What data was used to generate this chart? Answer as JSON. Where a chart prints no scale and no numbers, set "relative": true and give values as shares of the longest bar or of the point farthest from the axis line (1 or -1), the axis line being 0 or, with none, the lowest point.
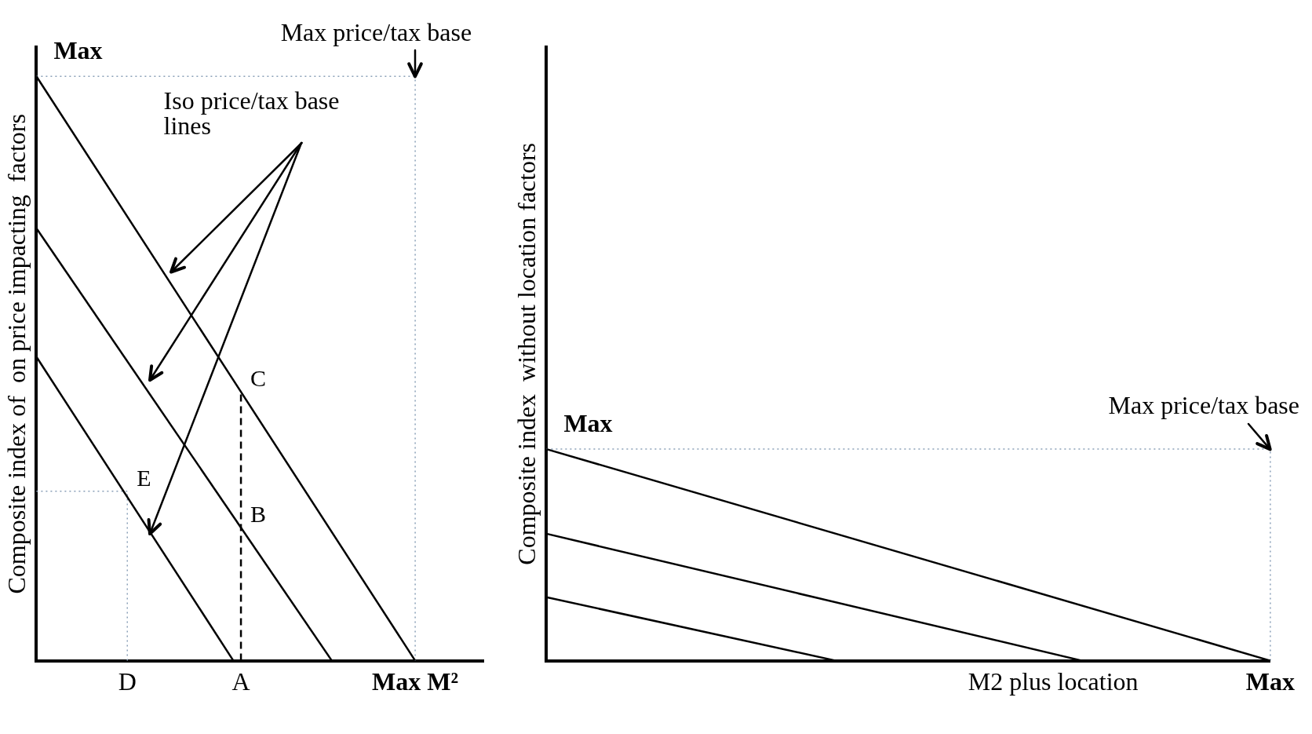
{
  "chart_data": [
    {
      "type": "line",
      "relative": true,
      "ylabel": "Composite index of  on price impacting  factors",
      "grid": false,
      "legend": false,
      "marker": "none",
      "categories": [
        null,
        null,
        null,
        null,
        null,
        null,
        null,
        null,
        null,
        null,
        null,
        null,
        "D",
        null,
        null,
        null,
        null,
        null,
        null,
        null,
        null,
        null,
        null,
        null,
        null,
        null,
        null,
        "A",
        null,
        null,
        null,
        null,
        null,
        null,
        null,
        null,
        null,
        null,
        null,
        null,
        null,
        null,
        null,
        null,
        null,
        null,
        null,
        null,
        null,
        null,
        "Max M²",
        null,
        null,
        null,
        null,
        null,
        null,
        null,
        null,
        null
      ],
      "series": [
        {
          "color": "#000000",
          "values": [
            1,
            null,
            null,
            null,
            null,
            null,
            null,
            null,
            null,
            null,
            null,
            null,
            null,
            null,
            null,
            null,
            null,
            null,
            null,
            null,
            null,
            null,
            null,
            null,
            null,
            null,
            null,
            0.46,
            null,
            null,
            null,
            null,
            null,
            null,
            null,
            null,
            null,
            null,
            null,
            null,
            null,
            null,
            null,
            null,
            null,
            null,
            null,
            null,
            null,
            null,
            0,
            null,
            null,
            null,
            null,
            null,
            null,
            null,
            null,
            null
          ]
        },
        {
          "color": "#000000",
          "values": [
            0.74,
            null,
            null,
            null,
            null,
            null,
            null,
            null,
            null,
            null,
            null,
            null,
            null,
            null,
            null,
            null,
            null,
            null,
            null,
            null,
            null,
            null,
            null,
            null,
            null,
            null,
            null,
            null,
            null,
            null,
            null,
            null,
            null,
            null,
            null,
            null,
            null,
            null,
            null,
            0,
            null,
            null,
            null,
            null,
            null,
            null,
            null,
            null,
            null,
            null,
            null,
            null,
            null,
            null,
            null,
            null,
            null,
            null,
            null,
            null
          ]
        },
        {
          "color": "#000000",
          "values": [
            0.52,
            null,
            null,
            null,
            null,
            null,
            null,
            null,
            null,
            null,
            null,
            null,
            null,
            null,
            null,
            null,
            null,
            null,
            null,
            null,
            null,
            null,
            null,
            null,
            null,
            null,
            0,
            null,
            null,
            null,
            null,
            null,
            null,
            null,
            null,
            null,
            null,
            null,
            null,
            null,
            null,
            null,
            null,
            null,
            null,
            null,
            null,
            null,
            null,
            null,
            null,
            null,
            null,
            null,
            null,
            null,
            null,
            null,
            null,
            null
          ]
        },
        {
          "color": "#8aa0b8",
          "line_style": "dotted",
          "values": [
            0.29,
            null,
            null,
            null,
            null,
            null,
            null,
            null,
            null,
            null,
            null,
            null,
            0.29,
            null,
            null,
            null,
            null,
            null,
            null,
            null,
            null,
            null,
            null,
            null,
            null,
            null,
            null,
            null,
            null,
            null,
            null,
            null,
            null,
            null,
            null,
            null,
            null,
            null,
            null,
            null,
            null,
            null,
            null,
            null,
            null,
            null,
            null,
            null,
            null,
            null,
            null,
            null,
            null,
            null,
            null,
            null,
            null,
            null,
            null,
            null
          ]
        },
        {
          "color": "#8aa0b8",
          "line_style": "dotted",
          "values": [
            1,
            null,
            null,
            null,
            null,
            null,
            null,
            null,
            null,
            null,
            null,
            null,
            null,
            null,
            null,
            null,
            null,
            null,
            null,
            null,
            null,
            null,
            null,
            null,
            null,
            null,
            null,
            null,
            null,
            null,
            null,
            null,
            null,
            null,
            null,
            null,
            null,
            null,
            null,
            null,
            null,
            null,
            null,
            null,
            null,
            null,
            null,
            null,
            null,
            null,
            1,
            null,
            null,
            null,
            null,
            null,
            null,
            null,
            null,
            null
          ]
        }
      ],
      "ref_lines": [
        {
          "axis": "x",
          "value": "D",
          "color": "#8aa0b8",
          "line_style": "dotted"
        },
        {
          "axis": "x",
          "value": "A",
          "color": "#000000",
          "line_style": "dashed"
        },
        {
          "axis": "x",
          "value": "Max M²",
          "color": "#8aa0b8",
          "line_style": "dotted"
        }
      ],
      "annotations": [
        "Iso  price/tax base lines",
        {
          "text": "Max",
          "y": 1
        },
        {
          "text": "Max price/tax base",
          "x": "Max M²",
          "y": 1
        },
        {
          "text": "C",
          "x": "A",
          "y": 0.46
        },
        {
          "text": "B",
          "x": "A",
          "y": 0.228
        },
        {
          "text": "E",
          "x": "D",
          "y": 0.29
        }
      ]
    },
    {
      "type": "line",
      "relative": true,
      "ylabel": "Composite index  without location factors",
      "grid": false,
      "legend": false,
      "marker": "none",
      "categories": [
        null,
        null,
        null,
        null,
        null,
        null,
        null,
        null,
        null,
        null,
        null,
        null,
        null,
        null,
        null,
        null,
        null,
        null,
        null,
        null,
        null,
        null,
        null,
        null,
        null,
        null,
        null,
        null,
        null,
        null,
        null,
        null,
        null,
        null,
        null,
        "M2 plus location",
        null,
        null,
        null,
        null,
        null,
        null,
        null,
        null,
        null,
        null,
        null,
        null,
        null,
        null,
        "Max"
      ],
      "series": [
        {
          "color": "#000000",
          "values": [
            1,
            null,
            null,
            null,
            null,
            null,
            null,
            null,
            null,
            null,
            null,
            null,
            null,
            null,
            null,
            null,
            null,
            null,
            null,
            null,
            null,
            null,
            null,
            null,
            null,
            null,
            null,
            null,
            null,
            null,
            null,
            null,
            null,
            null,
            null,
            null,
            null,
            null,
            null,
            null,
            null,
            null,
            null,
            null,
            null,
            null,
            null,
            null,
            null,
            null,
            0
          ]
        },
        {
          "color": "#000000",
          "values": [
            0.6,
            null,
            null,
            null,
            null,
            null,
            null,
            null,
            null,
            null,
            null,
            null,
            null,
            null,
            null,
            null,
            null,
            null,
            null,
            null,
            null,
            null,
            null,
            null,
            null,
            null,
            null,
            null,
            null,
            null,
            null,
            null,
            null,
            null,
            null,
            null,
            null,
            0,
            null,
            null,
            null,
            null,
            null,
            null,
            null,
            null,
            null,
            null,
            null,
            null,
            null
          ]
        },
        {
          "color": "#000000",
          "values": [
            0.3,
            null,
            null,
            null,
            null,
            null,
            null,
            null,
            null,
            null,
            null,
            null,
            null,
            null,
            null,
            null,
            null,
            null,
            null,
            null,
            0,
            null,
            null,
            null,
            null,
            null,
            null,
            null,
            null,
            null,
            null,
            null,
            null,
            null,
            null,
            null,
            null,
            null,
            null,
            null,
            null,
            null,
            null,
            null,
            null,
            null,
            null,
            null,
            null,
            null,
            null
          ]
        },
        {
          "color": "#8aa0b8",
          "line_style": "dotted",
          "values": [
            1,
            null,
            null,
            null,
            null,
            null,
            null,
            null,
            null,
            null,
            null,
            null,
            null,
            null,
            null,
            null,
            null,
            null,
            null,
            null,
            null,
            null,
            null,
            null,
            null,
            null,
            null,
            null,
            null,
            null,
            null,
            null,
            null,
            null,
            null,
            null,
            null,
            null,
            null,
            null,
            null,
            null,
            null,
            null,
            null,
            null,
            null,
            null,
            null,
            null,
            1
          ]
        }
      ],
      "ref_lines": [
        {
          "axis": "x",
          "value": "Max",
          "color": "#8aa0b8",
          "line_style": "dotted"
        }
      ],
      "annotations": [
        {
          "text": "Max",
          "y": 1
        },
        {
          "text": "Max price/tax base",
          "x": "Max",
          "y": 1
        }
      ]
    }
  ]
}
